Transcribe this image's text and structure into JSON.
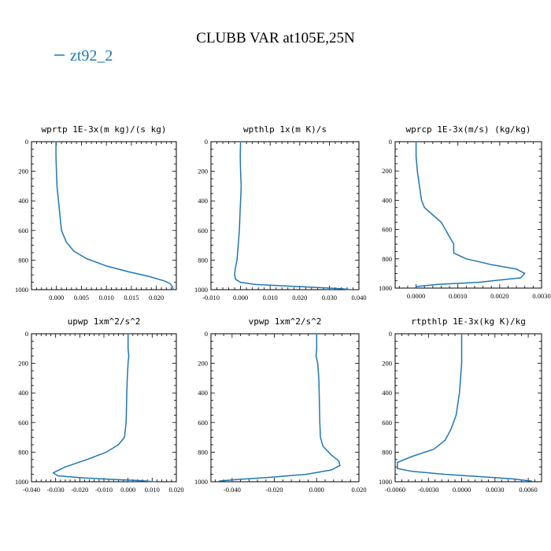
{
  "figure": {
    "title": "CLUBB VAR at105E,25N",
    "legend": {
      "label": "zt92_2",
      "color": "#1f77b4"
    }
  },
  "chart_data": [
    {
      "type": "line",
      "title": "wprtp  1E-3x(m kg)/(s kg)",
      "xlim": [
        -0.005,
        0.024
      ],
      "ylim": [
        1000,
        0
      ],
      "x_ticks": [
        0.0,
        0.005,
        0.01,
        0.015,
        0.02
      ],
      "x_tick_labels": [
        "0.000",
        "0.005",
        "0.010",
        "0.015",
        "0.020"
      ],
      "y_ticks": [
        0,
        200,
        400,
        600,
        800,
        1000
      ],
      "y_tick_labels": [
        "0",
        "200",
        "400",
        "600",
        "800",
        "1000"
      ],
      "series": [
        {
          "name": "zt92_2",
          "color": "#1f77b4",
          "x": [
            -0.0001,
            -0.0001,
            0.0,
            0.0001,
            0.0004,
            0.0007,
            0.001,
            0.002,
            0.0035,
            0.006,
            0.01,
            0.0145,
            0.0185,
            0.0215,
            0.0228,
            0.0232,
            0.0234
          ],
          "y": [
            0,
            100,
            200,
            300,
            400,
            500,
            600,
            680,
            740,
            790,
            840,
            880,
            910,
            940,
            960,
            980,
            1000
          ]
        }
      ]
    },
    {
      "type": "line",
      "title": "wpthlp  1x(m K)/s",
      "xlim": [
        -0.01,
        0.04
      ],
      "ylim": [
        1000,
        0
      ],
      "x_ticks": [
        -0.01,
        0.0,
        0.01,
        0.02,
        0.03,
        0.04
      ],
      "x_tick_labels": [
        "-0.010",
        "0.000",
        "0.010",
        "0.020",
        "0.030",
        "0.040"
      ],
      "y_ticks": [
        0,
        200,
        400,
        600,
        800,
        1000
      ],
      "y_tick_labels": [
        "0",
        "200",
        "400",
        "600",
        "800",
        "1000"
      ],
      "series": [
        {
          "name": "zt92_2",
          "color": "#1f77b4",
          "x": [
            0.0,
            -0.0001,
            0.0,
            0.0002,
            0.0,
            -0.0002,
            -0.0004,
            -0.0008,
            -0.0012,
            -0.0018,
            -0.002,
            -0.0017,
            0.0,
            0.005,
            0.015,
            0.026,
            0.034,
            0.0375
          ],
          "y": [
            0,
            100,
            200,
            300,
            400,
            500,
            600,
            700,
            800,
            860,
            900,
            930,
            950,
            965,
            975,
            985,
            993,
            1000
          ]
        }
      ]
    },
    {
      "type": "line",
      "title": "wprcp  1E-3x(m/s) (kg/kg)",
      "xlim": [
        -0.0005,
        0.003
      ],
      "ylim": [
        1000,
        0
      ],
      "x_ticks": [
        0.0,
        0.001,
        0.002,
        0.003
      ],
      "x_tick_labels": [
        "0.0000",
        "0.0010",
        "0.0020",
        "0.0030"
      ],
      "y_ticks": [
        0,
        200,
        400,
        600,
        800,
        1000
      ],
      "y_tick_labels": [
        "0",
        "200",
        "400",
        "600",
        "800",
        "1000"
      ],
      "series": [
        {
          "name": "zt92_2",
          "color": "#1f77b4",
          "x": [
            0.0,
            0.0,
            3e-05,
            8e-05,
            0.00013,
            0.0002,
            0.0004,
            0.0006,
            0.0008,
            0.0009,
            0.0009,
            0.0012,
            0.0018,
            0.0024,
            0.0026,
            0.0025,
            0.0015,
            0.0005,
            0.0
          ],
          "y": [
            0,
            100,
            200,
            300,
            400,
            450,
            500,
            550,
            650,
            700,
            760,
            800,
            840,
            870,
            900,
            930,
            960,
            975,
            990
          ]
        }
      ]
    },
    {
      "type": "line",
      "title": "upwp  1xm^2/s^2",
      "xlim": [
        -0.04,
        0.02
      ],
      "ylim": [
        1000,
        0
      ],
      "x_ticks": [
        -0.04,
        -0.03,
        -0.02,
        -0.01,
        0.0,
        0.01,
        0.02
      ],
      "x_tick_labels": [
        "-0.040",
        "-0.030",
        "-0.020",
        "-0.010",
        "0.000",
        "0.010",
        "0.020"
      ],
      "y_ticks": [
        0,
        200,
        400,
        600,
        800,
        1000
      ],
      "y_tick_labels": [
        "0",
        "200",
        "400",
        "600",
        "800",
        "1000"
      ],
      "series": [
        {
          "name": "zt92_2",
          "color": "#1f77b4",
          "x": [
            0.0,
            0.0,
            0.0003,
            0.0,
            -0.0003,
            -0.0005,
            -0.0008,
            -0.0015,
            -0.004,
            -0.009,
            -0.017,
            -0.026,
            -0.031,
            -0.029,
            -0.018,
            -0.005,
            0.005,
            0.011
          ],
          "y": [
            0,
            100,
            150,
            200,
            300,
            400,
            600,
            700,
            750,
            800,
            850,
            900,
            940,
            960,
            975,
            985,
            992,
            1000
          ]
        }
      ]
    },
    {
      "type": "line",
      "title": "vpwp  1xm^2/s^2",
      "xlim": [
        -0.05,
        0.02
      ],
      "ylim": [
        1000,
        0
      ],
      "x_ticks": [
        -0.04,
        -0.02,
        0.0,
        0.02
      ],
      "x_tick_labels": [
        "-0.040",
        "-0.020",
        "0.000",
        "0.020"
      ],
      "y_ticks": [
        0,
        200,
        400,
        600,
        800,
        1000
      ],
      "y_tick_labels": [
        "0",
        "200",
        "400",
        "600",
        "800",
        "1000"
      ],
      "series": [
        {
          "name": "zt92_2",
          "color": "#1f77b4",
          "x": [
            0.0,
            0.0,
            -0.0003,
            0.0005,
            0.001,
            0.0012,
            0.0015,
            0.0018,
            0.003,
            0.007,
            0.0105,
            0.011,
            0.007,
            -0.005,
            -0.022,
            -0.038,
            -0.046
          ],
          "y": [
            0,
            100,
            150,
            200,
            300,
            400,
            600,
            700,
            760,
            820,
            860,
            890,
            920,
            950,
            970,
            985,
            995
          ]
        }
      ]
    },
    {
      "type": "line",
      "title": "rtpthlp  1E-3x(kg K)/kg",
      "xlim": [
        -0.006,
        0.0072
      ],
      "ylim": [
        1000,
        0
      ],
      "x_ticks": [
        -0.006,
        -0.003,
        0.0,
        0.003,
        0.006
      ],
      "x_tick_labels": [
        "-0.0060",
        "-0.0030",
        "0.0000",
        "0.0030",
        "0.0060"
      ],
      "y_ticks": [
        0,
        200,
        400,
        600,
        800,
        1000
      ],
      "y_tick_labels": [
        "0",
        "200",
        "400",
        "600",
        "800",
        "1000"
      ],
      "series": [
        {
          "name": "zt92_2",
          "color": "#1f77b4",
          "x": [
            0.0,
            0.0,
            -0.0002,
            -0.0005,
            -0.001,
            -0.0015,
            -0.0025,
            -0.0045,
            -0.0058,
            -0.0058,
            -0.0045,
            -0.0015,
            0.0015,
            0.0045,
            0.0063
          ],
          "y": [
            0,
            200,
            400,
            550,
            650,
            720,
            780,
            830,
            870,
            910,
            930,
            950,
            965,
            980,
            995
          ]
        }
      ]
    }
  ]
}
